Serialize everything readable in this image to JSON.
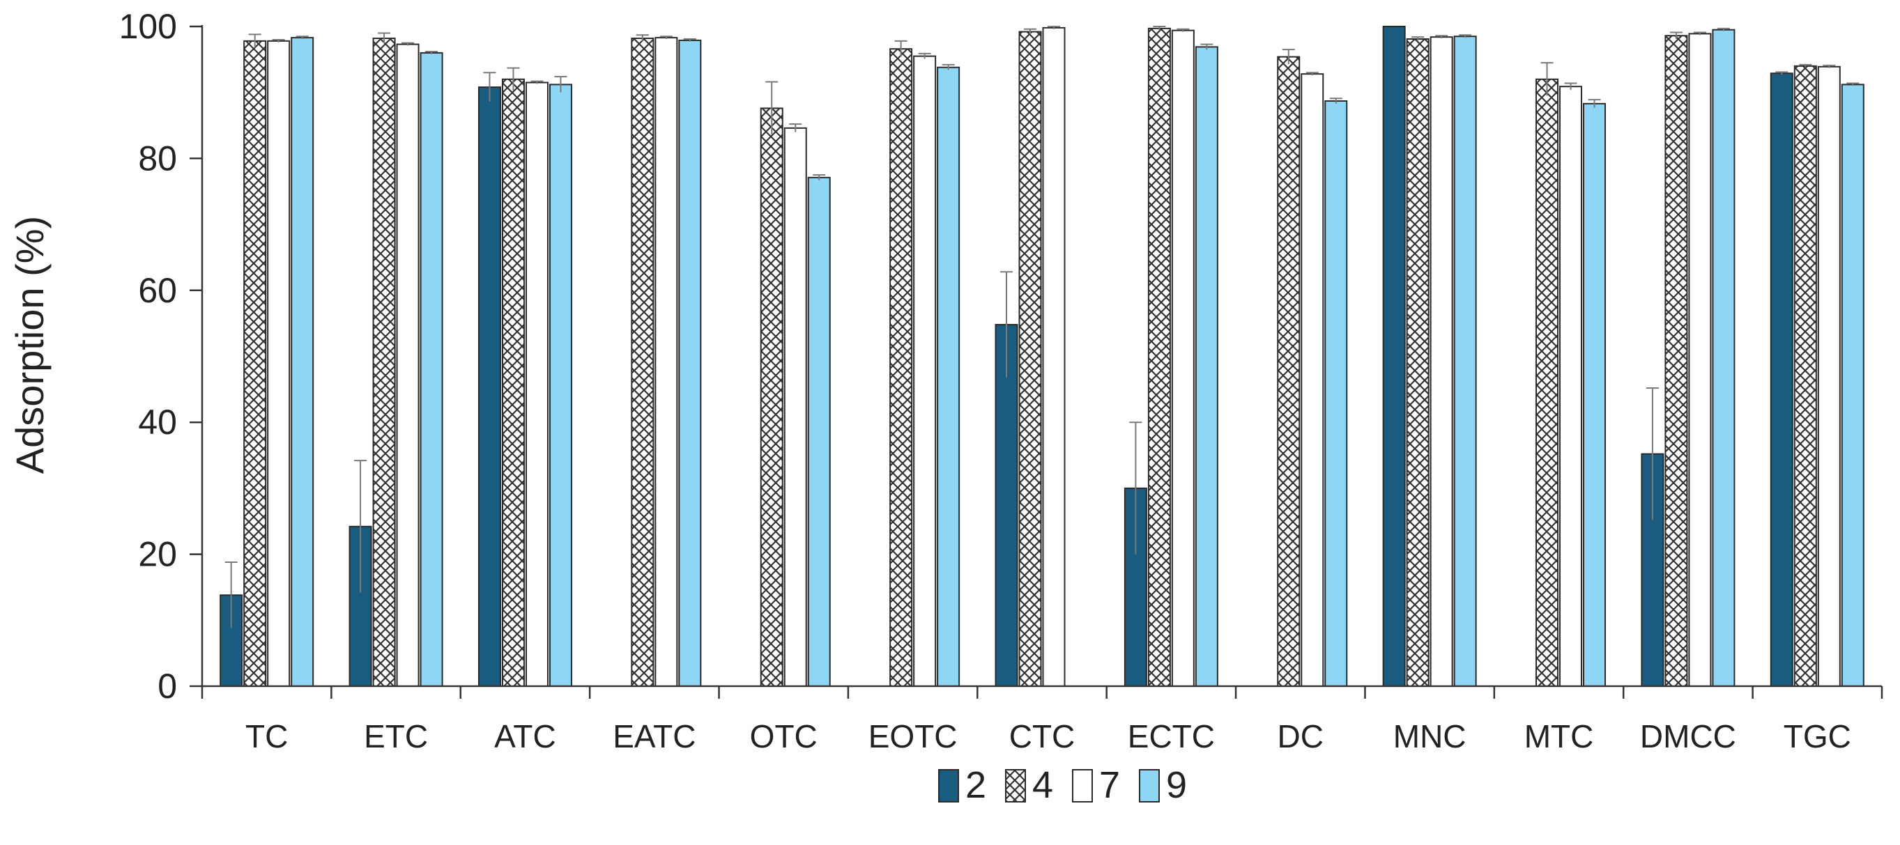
{
  "chart_data": {
    "type": "bar",
    "title": "",
    "xlabel": "",
    "ylabel": "Adsorption (%)",
    "ylim": [
      0,
      100
    ],
    "yticks": [
      0,
      20,
      40,
      60,
      80,
      100
    ],
    "grid": false,
    "legend_position": "bottom",
    "categories": [
      "TC",
      "ETC",
      "ATC",
      "EATC",
      "OTC",
      "EOTC",
      "CTC",
      "ECTC",
      "DC",
      "MNC",
      "MTC",
      "DMCC",
      "TGC"
    ],
    "series": [
      {
        "name": "2",
        "fill": "solid",
        "color": "#1a5b80",
        "values": [
          13.8,
          24.2,
          90.8,
          null,
          null,
          null,
          54.8,
          30.0,
          null,
          100.0,
          null,
          35.2,
          92.9
        ],
        "errors": [
          5.0,
          10.0,
          2.2,
          null,
          null,
          null,
          8.0,
          10.0,
          null,
          0,
          null,
          10.0,
          0.2
        ]
      },
      {
        "name": "4",
        "fill": "crosshatch",
        "color": "#ffffff",
        "values": [
          97.8,
          98.2,
          92.0,
          98.2,
          87.6,
          96.6,
          99.2,
          99.7,
          95.4,
          98.1,
          92.0,
          98.6,
          94.0
        ],
        "errors": [
          1.0,
          0.8,
          1.7,
          0.5,
          4.0,
          1.2,
          0.4,
          0.3,
          1.1,
          0.3,
          2.5,
          0.5,
          0.2
        ]
      },
      {
        "name": "7",
        "fill": "white",
        "color": "#ffffff",
        "values": [
          97.8,
          97.3,
          91.5,
          98.3,
          84.6,
          95.5,
          99.8,
          99.4,
          92.8,
          98.4,
          90.9,
          98.9,
          93.9
        ],
        "errors": [
          0.2,
          0.2,
          0.2,
          0.2,
          0.6,
          0.4,
          0.2,
          0.2,
          0.2,
          0.2,
          0.5,
          0.2,
          0.2
        ]
      },
      {
        "name": "9",
        "fill": "solid",
        "color": "#8fd6f5",
        "values": [
          98.3,
          96.0,
          91.2,
          97.9,
          77.1,
          93.8,
          null,
          96.9,
          88.7,
          98.5,
          88.3,
          99.5,
          91.2
        ],
        "errors": [
          0.2,
          0.2,
          1.2,
          0.2,
          0.4,
          0.4,
          null,
          0.4,
          0.4,
          0.2,
          0.6,
          0.2,
          0.2
        ]
      }
    ]
  }
}
